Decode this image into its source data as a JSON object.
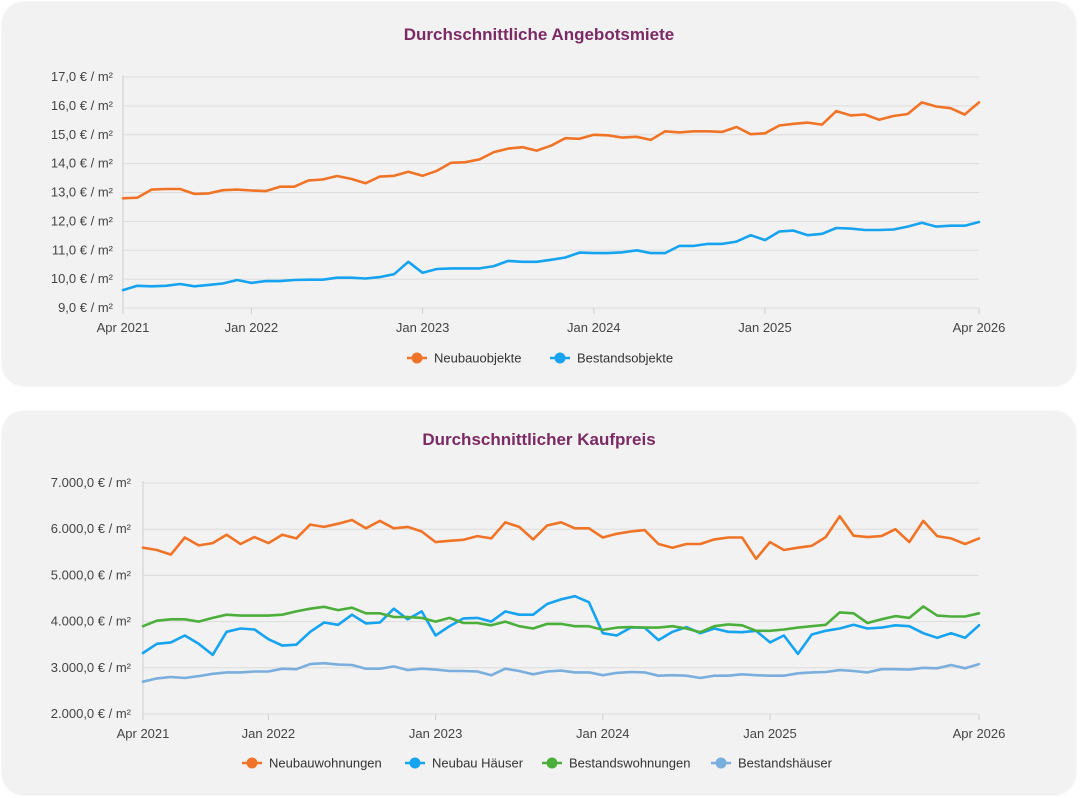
{
  "chart_data": [
    {
      "type": "line",
      "title": "Durchschnittliche Angebotsmiete",
      "y_tick_labels": [
        "9,0 € / m²",
        "10,0 € / m²",
        "11,0 € / m²",
        "12,0 € / m²",
        "13,0 € / m²",
        "14,0 € / m²",
        "15,0 € / m²",
        "16,0 € / m²",
        "17,0 € / m²"
      ],
      "y_ticks": [
        9,
        10,
        11,
        12,
        13,
        14,
        15,
        16,
        17
      ],
      "ylim": [
        9,
        17
      ],
      "x_tick_labels": [
        "Apr 2021",
        "Jan 2022",
        "Jan 2023",
        "Jan 2024",
        "Jan 2025",
        "Apr 2026"
      ],
      "x_ticks": [
        "2021-04",
        "2022-01",
        "2023-01",
        "2024-01",
        "2025-01",
        "2026-04"
      ],
      "xlim": [
        "2021-04",
        "2026-04"
      ],
      "grid": true,
      "legend_position": "bottom",
      "series": [
        {
          "name": "Neubauobjekte",
          "color": "#f07427",
          "values": [
            12.8,
            12.82,
            13.1,
            13.12,
            13.12,
            12.95,
            12.97,
            13.08,
            13.1,
            13.07,
            13.05,
            13.2,
            13.2,
            13.42,
            13.45,
            13.57,
            13.47,
            13.32,
            13.55,
            13.58,
            13.72,
            13.58,
            13.75,
            14.03,
            14.05,
            14.15,
            14.4,
            14.52,
            14.57,
            14.45,
            14.62,
            14.88,
            14.86,
            15.0,
            14.98,
            14.9,
            14.93,
            14.82,
            15.12,
            15.08,
            15.12,
            15.12,
            15.1,
            15.27,
            15.02,
            15.05,
            15.32,
            15.38,
            15.42,
            15.35,
            15.82,
            15.67,
            15.7,
            15.52,
            15.65,
            15.72,
            16.12,
            15.98,
            15.92,
            15.7,
            16.12
          ]
        },
        {
          "name": "Bestandsobjekte",
          "color": "#16a3ef",
          "values": [
            9.62,
            9.77,
            9.75,
            9.77,
            9.83,
            9.75,
            9.8,
            9.85,
            9.97,
            9.87,
            9.93,
            9.93,
            9.97,
            9.98,
            9.98,
            10.05,
            10.05,
            10.02,
            10.07,
            10.17,
            10.6,
            10.22,
            10.35,
            10.37,
            10.37,
            10.37,
            10.45,
            10.63,
            10.6,
            10.6,
            10.67,
            10.75,
            10.92,
            10.9,
            10.9,
            10.93,
            11.0,
            10.9,
            10.9,
            11.15,
            11.15,
            11.22,
            11.22,
            11.3,
            11.52,
            11.35,
            11.65,
            11.68,
            11.52,
            11.57,
            11.77,
            11.75,
            11.7,
            11.7,
            11.72,
            11.82,
            11.95,
            11.82,
            11.85,
            11.85,
            11.98
          ]
        }
      ]
    },
    {
      "type": "line",
      "title": "Durchschnittlicher Kaufpreis",
      "y_tick_labels": [
        "2.000,0 € / m²",
        "3.000,0 € / m²",
        "4.000,0 € / m²",
        "5.000,0 € / m²",
        "6.000,0 € / m²",
        "7.000,0 € / m²"
      ],
      "y_ticks": [
        2000,
        3000,
        4000,
        5000,
        6000,
        7000
      ],
      "ylim": [
        2000,
        7000
      ],
      "x_tick_labels": [
        "Apr 2021",
        "Jan 2022",
        "Jan 2023",
        "Jan 2024",
        "Jan 2025",
        "Apr 2026"
      ],
      "x_ticks": [
        "2021-04",
        "2022-01",
        "2023-01",
        "2024-01",
        "2025-01",
        "2026-04"
      ],
      "xlim": [
        "2021-04",
        "2026-04"
      ],
      "grid": true,
      "legend_position": "bottom",
      "series": [
        {
          "name": "Neubauwohnungen",
          "color": "#f07427",
          "values": [
            5600,
            5550,
            5450,
            5820,
            5650,
            5700,
            5880,
            5680,
            5830,
            5700,
            5880,
            5800,
            6100,
            6050,
            6120,
            6200,
            6020,
            6180,
            6020,
            6050,
            5950,
            5720,
            5750,
            5770,
            5850,
            5800,
            6150,
            6050,
            5780,
            6080,
            6150,
            6020,
            6020,
            5820,
            5900,
            5950,
            5980,
            5680,
            5600,
            5680,
            5680,
            5780,
            5820,
            5820,
            5360,
            5720,
            5550,
            5600,
            5640,
            5830,
            6280,
            5860,
            5830,
            5850,
            6000,
            5720,
            6180,
            5850,
            5800,
            5680,
            5800
          ]
        },
        {
          "name": "Neubau Häuser",
          "color": "#16a3ef",
          "values": [
            3320,
            3520,
            3550,
            3700,
            3520,
            3280,
            3780,
            3850,
            3830,
            3620,
            3480,
            3500,
            3780,
            3980,
            3930,
            4150,
            3960,
            3980,
            4280,
            4050,
            4220,
            3700,
            3900,
            4070,
            4080,
            4000,
            4220,
            4150,
            4150,
            4380,
            4480,
            4550,
            4420,
            3750,
            3700,
            3870,
            3870,
            3600,
            3780,
            3880,
            3750,
            3850,
            3780,
            3770,
            3800,
            3550,
            3700,
            3300,
            3720,
            3800,
            3850,
            3930,
            3850,
            3870,
            3920,
            3900,
            3750,
            3650,
            3750,
            3650,
            3920
          ]
        },
        {
          "name": "Bestandswohnungen",
          "color": "#4caf3c",
          "values": [
            3900,
            4020,
            4050,
            4050,
            4000,
            4080,
            4150,
            4130,
            4130,
            4130,
            4150,
            4220,
            4280,
            4320,
            4250,
            4300,
            4180,
            4180,
            4100,
            4100,
            4080,
            4000,
            4080,
            3970,
            3970,
            3920,
            4000,
            3900,
            3850,
            3950,
            3950,
            3900,
            3900,
            3820,
            3870,
            3880,
            3870,
            3870,
            3900,
            3850,
            3770,
            3900,
            3940,
            3920,
            3800,
            3800,
            3830,
            3870,
            3900,
            3930,
            4200,
            4180,
            3970,
            4050,
            4120,
            4080,
            4330,
            4130,
            4110,
            4110,
            4180
          ]
        },
        {
          "name": "Bestandshäuser",
          "color": "#7aaedc",
          "values": [
            2700,
            2770,
            2800,
            2780,
            2820,
            2870,
            2900,
            2900,
            2920,
            2920,
            2980,
            2970,
            3080,
            3100,
            3070,
            3060,
            2980,
            2980,
            3030,
            2950,
            2980,
            2960,
            2930,
            2930,
            2920,
            2840,
            2980,
            2930,
            2860,
            2920,
            2940,
            2900,
            2900,
            2840,
            2890,
            2910,
            2900,
            2830,
            2840,
            2830,
            2780,
            2830,
            2830,
            2860,
            2840,
            2830,
            2830,
            2880,
            2900,
            2910,
            2950,
            2930,
            2900,
            2970,
            2970,
            2960,
            3000,
            2990,
            3060,
            2990,
            3080
          ]
        }
      ]
    }
  ]
}
